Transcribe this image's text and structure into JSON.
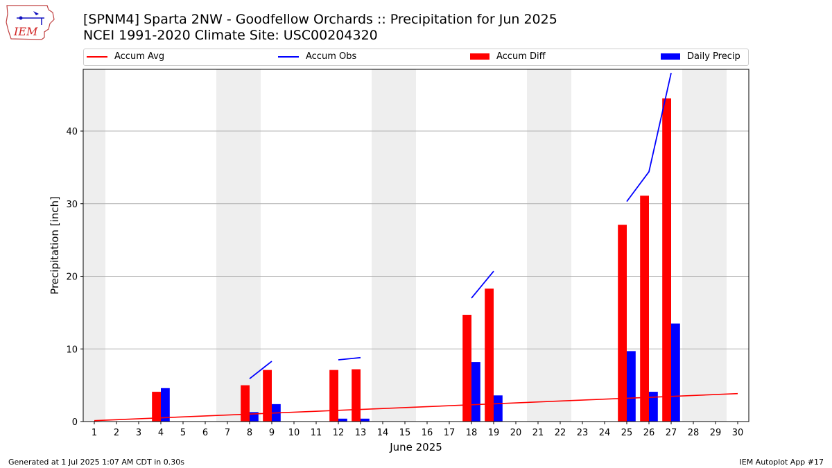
{
  "header": {
    "title_line1": "[SPNM4] Sparta 2NW - Goodfellow Orchards :: Precipitation for Jun 2025",
    "title_line2": "NCEI 1991-2020 Climate Site: USC00204320",
    "logo_text": "IEM"
  },
  "footer": {
    "generated": "Generated at 1 Jul 2025 1:07 AM CDT in 0.30s",
    "app": "IEM Autoplot App #17"
  },
  "colors": {
    "accum_avg": "#ff0000",
    "accum_obs": "#0000ff",
    "accum_diff": "#ff0000",
    "daily_precip": "#0000ff",
    "weekend_band": "#eeeeee",
    "grid": "#b0b0b0"
  },
  "chart_data": {
    "type": "bar",
    "xlabel": "June 2025",
    "ylabel": "Precipitation [inch]",
    "xlim": [
      0.5,
      30.5
    ],
    "ylim": [
      0,
      48.5
    ],
    "yticks": [
      0,
      10,
      20,
      30,
      40
    ],
    "xticks": [
      1,
      2,
      3,
      4,
      5,
      6,
      7,
      8,
      9,
      10,
      11,
      12,
      13,
      14,
      15,
      16,
      17,
      18,
      19,
      20,
      21,
      22,
      23,
      24,
      25,
      26,
      27,
      28,
      29,
      30
    ],
    "grid": "y",
    "legend_position": "top",
    "weekend_days": [
      1,
      7,
      8,
      14,
      15,
      21,
      22,
      28,
      29
    ],
    "legend": [
      "Accum Avg",
      "Accum Obs",
      "Accum Diff",
      "Daily Precip"
    ],
    "accum_avg": {
      "name": "Accum Avg",
      "x": [
        1,
        30
      ],
      "y": [
        0.13,
        3.85
      ]
    },
    "accum_obs": {
      "name": "Accum Obs",
      "segments": [
        {
          "x": [
            8,
            9
          ],
          "y": [
            5.9,
            8.3
          ]
        },
        {
          "x": [
            12,
            13
          ],
          "y": [
            8.5,
            8.8
          ]
        },
        {
          "x": [
            18,
            19
          ],
          "y": [
            17.0,
            20.7
          ]
        },
        {
          "x": [
            25,
            26,
            27
          ],
          "y": [
            30.3,
            34.4,
            48.0
          ]
        }
      ]
    },
    "accum_diff": {
      "name": "Accum Diff",
      "x": [
        4,
        8,
        9,
        12,
        13,
        18,
        19,
        25,
        26,
        27
      ],
      "values": [
        4.1,
        5.0,
        7.1,
        7.1,
        7.2,
        14.7,
        18.3,
        27.1,
        31.1,
        44.5
      ]
    },
    "daily_precip": {
      "name": "Daily Precip",
      "x": [
        4,
        8,
        9,
        12,
        13,
        18,
        19,
        25,
        26,
        27
      ],
      "values": [
        4.6,
        1.3,
        2.4,
        0.4,
        0.4,
        8.2,
        3.6,
        9.7,
        4.1,
        13.5
      ]
    }
  }
}
